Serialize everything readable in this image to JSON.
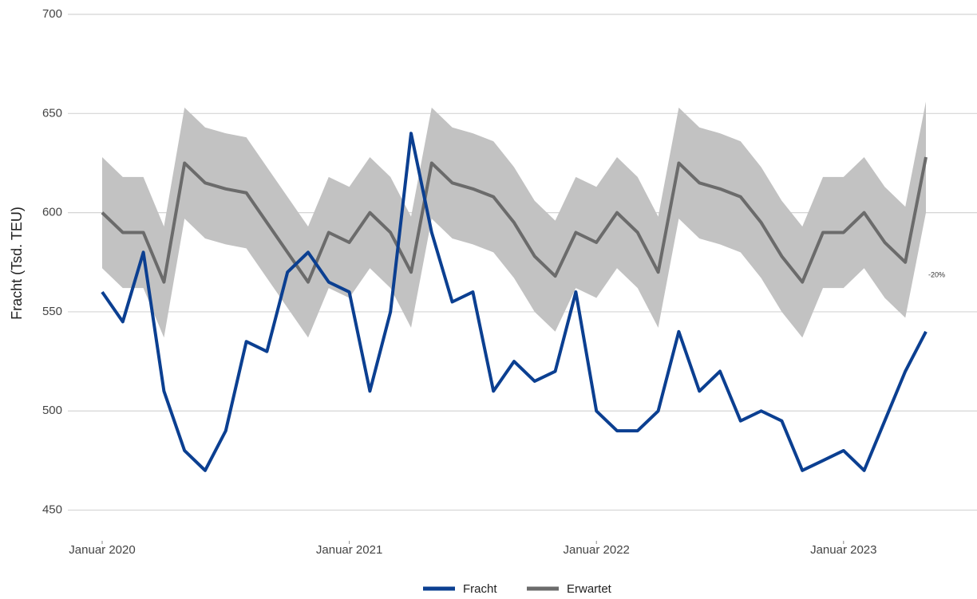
{
  "chart_data": {
    "type": "line",
    "y_label": "Fracht (Tsd. TEU)",
    "annotation": "-20%",
    "x": [
      "2020-01",
      "2020-02",
      "2020-03",
      "2020-04",
      "2020-05",
      "2020-06",
      "2020-07",
      "2020-08",
      "2020-09",
      "2020-10",
      "2020-11",
      "2020-12",
      "2021-01",
      "2021-02",
      "2021-03",
      "2021-04",
      "2021-05",
      "2021-06",
      "2021-07",
      "2021-08",
      "2021-09",
      "2021-10",
      "2021-11",
      "2021-12",
      "2022-01",
      "2022-02",
      "2022-03",
      "2022-04",
      "2022-05",
      "2022-06",
      "2022-07",
      "2022-08",
      "2022-09",
      "2022-10",
      "2022-11",
      "2022-12",
      "2023-01",
      "2023-02",
      "2023-03",
      "2023-04",
      "2023-05"
    ],
    "band": {
      "color": "#c2c2c2",
      "upper": [
        628,
        618,
        618,
        593,
        653,
        643,
        640,
        638,
        623,
        608,
        593,
        618,
        613,
        628,
        618,
        598,
        653,
        643,
        640,
        636,
        623,
        606,
        596,
        618,
        613,
        628,
        618,
        598,
        653,
        643,
        640,
        636,
        623,
        606,
        593,
        618,
        618,
        628,
        613,
        603,
        656
      ],
      "lower": [
        572,
        562,
        562,
        537,
        597,
        587,
        584,
        582,
        567,
        552,
        537,
        562,
        557,
        572,
        562,
        542,
        597,
        587,
        584,
        580,
        567,
        550,
        540,
        562,
        557,
        572,
        562,
        542,
        597,
        587,
        584,
        580,
        567,
        550,
        537,
        562,
        562,
        572,
        557,
        547,
        600
      ]
    },
    "series": [
      {
        "name": "Fracht",
        "color": "#0b3f91",
        "values": [
          560,
          545,
          580,
          510,
          480,
          470,
          490,
          535,
          530,
          570,
          580,
          565,
          560,
          510,
          550,
          640,
          590,
          555,
          560,
          510,
          525,
          515,
          520,
          560,
          500,
          490,
          490,
          500,
          540,
          510,
          520,
          495,
          500,
          495,
          470,
          475,
          480,
          470,
          495,
          520,
          540
        ]
      },
      {
        "name": "Erwartet",
        "color": "#6b6b6b",
        "values": [
          600,
          590,
          590,
          565,
          625,
          615,
          612,
          610,
          595,
          580,
          565,
          590,
          585,
          600,
          590,
          570,
          625,
          615,
          612,
          608,
          595,
          578,
          568,
          590,
          585,
          600,
          590,
          570,
          625,
          615,
          612,
          608,
          595,
          578,
          565,
          590,
          590,
          600,
          585,
          575,
          628
        ]
      }
    ],
    "ylim": [
      445,
      700
    ],
    "yticks": [
      450,
      500,
      550,
      600,
      650,
      700
    ],
    "xticks": [
      {
        "value": "2020-01",
        "label": "Januar 2020"
      },
      {
        "value": "2021-01",
        "label": "Januar 2021"
      },
      {
        "value": "2022-01",
        "label": "Januar 2022"
      },
      {
        "value": "2023-01",
        "label": "Januar 2023"
      }
    ],
    "grid": true
  }
}
